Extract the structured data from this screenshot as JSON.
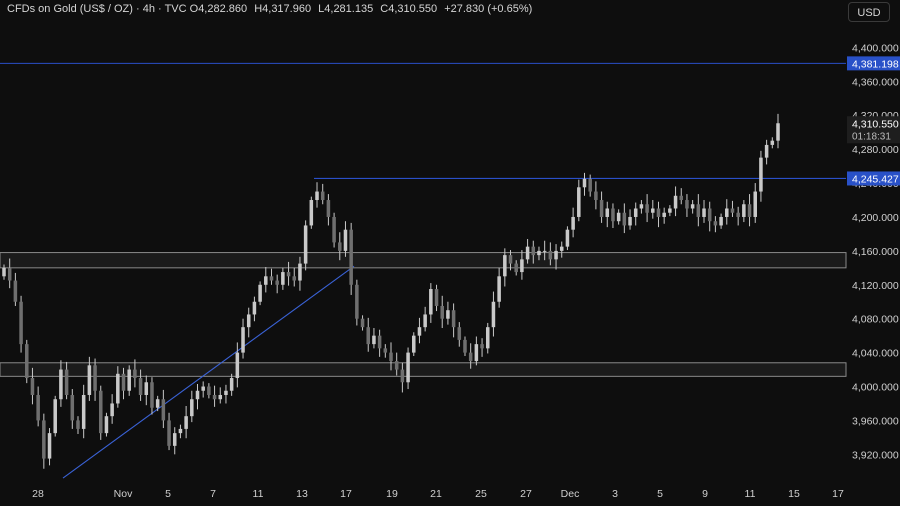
{
  "header": {
    "symbol": "CFDs on Gold (US$ / OZ)",
    "interval": "4h",
    "source": "TVC",
    "open_label": "O",
    "open": "4,282.860",
    "high_label": "H",
    "high": "4,317.960",
    "low_label": "L",
    "low": "4,281.135",
    "close_label": "C",
    "close": "4,310.550",
    "change": "+27.830 (+0.65%)"
  },
  "currency_button": "USD",
  "colors": {
    "background": "#0e0e0e",
    "candle": "#c9c9c9",
    "trendline": "#3a62d6",
    "level_line": "#2a4fc8",
    "zone_border": "#8a8a8a",
    "label_bg": "#2951c8"
  },
  "chart_data": {
    "type": "candlestick",
    "instrument": "CFDs on Gold (US$ / OZ)",
    "timeframe": "4h",
    "ylim": [
      3885,
      4430
    ],
    "y_ticks": [
      3920,
      3960,
      4000,
      4040,
      4080,
      4120,
      4160,
      4200,
      4240,
      4280,
      4320,
      4360,
      4400
    ],
    "y_tick_labels": [
      "3,920.000",
      "3,960.000",
      "4,000.000",
      "4,040.000",
      "4,080.000",
      "4,120.000",
      "4,160.000",
      "4,200.000",
      "4,240.000",
      "4,280.000",
      "4,320.000",
      "4,360.000",
      "4,400.000"
    ],
    "x_ticks": [
      "28",
      "Nov",
      "5",
      "7",
      "11",
      "13",
      "17",
      "19",
      "21",
      "25",
      "27",
      "Dec",
      "3",
      "5",
      "9",
      "11",
      "15",
      "17"
    ],
    "grid": false,
    "horizontal_levels": [
      {
        "value": 4381.198,
        "label": "4,381.198"
      },
      {
        "value": 4245.427,
        "label": "4,245.427",
        "start": "13"
      }
    ],
    "price_label": {
      "value": 4310.55,
      "label": "4,310.550",
      "countdown": "01:18:31"
    },
    "zones": [
      {
        "low": 4140,
        "high": 4158
      },
      {
        "low": 4012,
        "high": 4028
      }
    ],
    "trendline": {
      "from": {
        "x": "28",
        "y": 3892
      },
      "to": {
        "x": "17",
        "y": 4142
      }
    },
    "closes": [
      4140,
      4125,
      4100,
      4050,
      4010,
      3990,
      3960,
      3915,
      3945,
      3985,
      4020,
      3990,
      3960,
      3950,
      3990,
      4025,
      3995,
      3945,
      3965,
      3980,
      4015,
      3995,
      4020,
      4010,
      3990,
      4005,
      3975,
      3985,
      3960,
      3930,
      3945,
      3950,
      3965,
      3985,
      3995,
      4000,
      3990,
      3985,
      3990,
      3995,
      4010,
      4040,
      4070,
      4085,
      4100,
      4120,
      4130,
      4125,
      4120,
      4135,
      4130,
      4125,
      4145,
      4190,
      4220,
      4230,
      4220,
      4200,
      4170,
      4160,
      4185,
      4120,
      4080,
      4070,
      4050,
      4060,
      4045,
      4040,
      4030,
      4020,
      4005,
      4040,
      4060,
      4070,
      4085,
      4115,
      4095,
      4080,
      4090,
      4070,
      4055,
      4040,
      4030,
      4050,
      4045,
      4070,
      4100,
      4130,
      4155,
      4145,
      4135,
      4150,
      4165,
      4155,
      4160,
      4160,
      4150,
      4160,
      4165,
      4185,
      4200,
      4235,
      4245,
      4230,
      4220,
      4200,
      4210,
      4195,
      4205,
      4190,
      4200,
      4210,
      4215,
      4205,
      4210,
      4200,
      4205,
      4210,
      4225,
      4220,
      4210,
      4215,
      4200,
      4210,
      4195,
      4190,
      4200,
      4210,
      4205,
      4200,
      4215,
      4200,
      4230,
      4270,
      4285,
      4290,
      4310.55
    ]
  }
}
